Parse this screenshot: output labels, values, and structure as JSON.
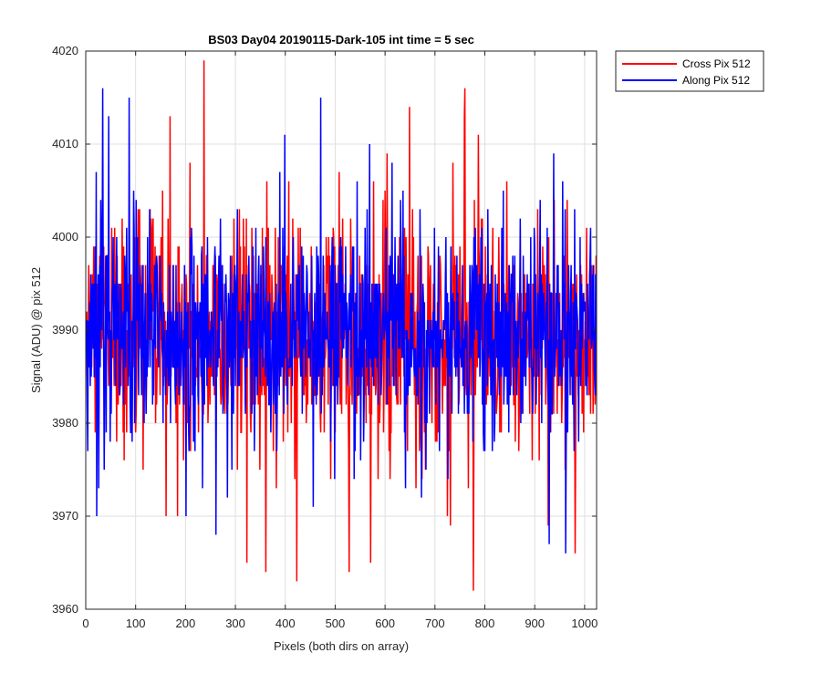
{
  "chart_data": {
    "type": "line",
    "title": "BS03 Day04 20190115-Dark-105 int time = 5 sec",
    "xlabel": "Pixels (both dirs on array)",
    "ylabel": "Signal (ADU) @ pix 512",
    "xlim": [
      0,
      1024
    ],
    "ylim": [
      3960,
      4020
    ],
    "xticks": [
      0,
      100,
      200,
      300,
      400,
      500,
      600,
      700,
      800,
      900,
      1000
    ],
    "yticks": [
      3960,
      3970,
      3980,
      3990,
      4000,
      4010,
      4020
    ],
    "grid": true,
    "legend_position": "outside-top-right",
    "series": [
      {
        "name": "Cross Pix 512",
        "color": "#ff0000",
        "n_points": 1024,
        "mean": 3989,
        "std": 6.5,
        "min": 3962,
        "max": 4019,
        "extremes": [
          {
            "x": 236,
            "y": 4019
          },
          {
            "x": 776,
            "y": 3962
          },
          {
            "x": 422,
            "y": 3963
          },
          {
            "x": 360,
            "y": 3964
          },
          {
            "x": 527,
            "y": 3964
          },
          {
            "x": 570,
            "y": 3965
          },
          {
            "x": 322,
            "y": 3965
          },
          {
            "x": 980,
            "y": 3966
          },
          {
            "x": 759,
            "y": 4016
          },
          {
            "x": 648,
            "y": 4014
          },
          {
            "x": 168,
            "y": 4013
          },
          {
            "x": 758,
            "y": 4013
          },
          {
            "x": 786,
            "y": 4011
          },
          {
            "x": 183,
            "y": 3970
          },
          {
            "x": 160,
            "y": 3970
          },
          {
            "x": 730,
            "y": 3969
          }
        ]
      },
      {
        "name": "Along Pix 512",
        "color": "#0000ff",
        "n_points": 1024,
        "mean": 3990,
        "std": 6.0,
        "min": 3966,
        "max": 4016,
        "extremes": [
          {
            "x": 33,
            "y": 4016
          },
          {
            "x": 470,
            "y": 4015
          },
          {
            "x": 86,
            "y": 4015
          },
          {
            "x": 45,
            "y": 4013
          },
          {
            "x": 398,
            "y": 4011
          },
          {
            "x": 568,
            "y": 4010
          },
          {
            "x": 937,
            "y": 4009
          },
          {
            "x": 20,
            "y": 4007
          },
          {
            "x": 260,
            "y": 3968
          },
          {
            "x": 928,
            "y": 3967
          },
          {
            "x": 961,
            "y": 3966
          },
          {
            "x": 25,
            "y": 3973
          },
          {
            "x": 200,
            "y": 3970
          },
          {
            "x": 640,
            "y": 3973
          }
        ]
      }
    ]
  }
}
